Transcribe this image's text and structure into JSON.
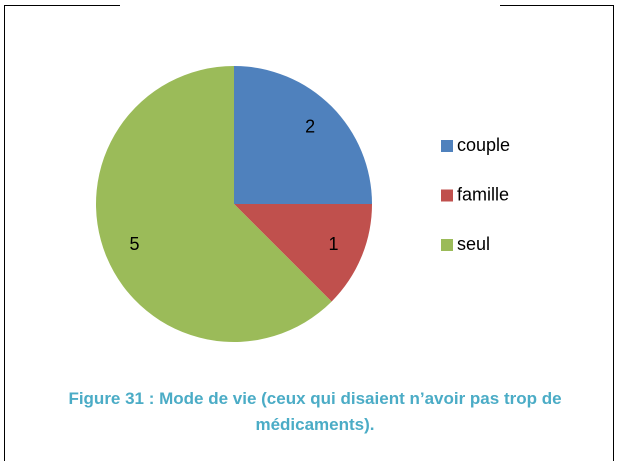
{
  "chart_data": {
    "type": "pie",
    "categories": [
      "couple",
      "famille",
      "seul"
    ],
    "values": [
      2,
      1,
      5
    ],
    "colors": [
      "#4f81bd",
      "#c0504d",
      "#9bbb59"
    ],
    "legend": "right",
    "caption": "Figure 31 : Mode de vie (ceux qui disaient n’avoir pas trop de médicaments)."
  }
}
